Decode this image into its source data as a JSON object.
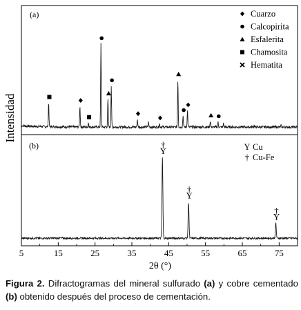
{
  "chart_data": {
    "type": "line",
    "xlabel": "2θ (°)",
    "ylabel": "Intensidad",
    "xlim": [
      5,
      80
    ],
    "x_ticks": [
      "5",
      "15",
      "25",
      "35",
      "45",
      "55",
      "65",
      "75"
    ],
    "panels": [
      {
        "label": "(a)",
        "legend": [
          {
            "symbol": "diamond",
            "name": "Cuarzo"
          },
          {
            "symbol": "circle",
            "name": "Calcopirita"
          },
          {
            "symbol": "triangle",
            "name": "Esfalerita"
          },
          {
            "symbol": "square",
            "name": "Chamosita"
          },
          {
            "symbol": "cross",
            "name": "Hematita"
          }
        ],
        "peaks": [
          {
            "x": 12.4,
            "height": 0.28,
            "marker": "square"
          },
          {
            "x": 20.9,
            "height": 0.24,
            "marker": "diamond"
          },
          {
            "x": 23.2,
            "height": 0.05,
            "marker": "square"
          },
          {
            "x": 26.6,
            "height": 0.95,
            "marker": "circle"
          },
          {
            "x": 28.5,
            "height": 0.32,
            "marker": "triangle"
          },
          {
            "x": 29.4,
            "height": 0.47,
            "marker": "circle"
          },
          {
            "x": 36.5,
            "height": 0.09,
            "marker": "diamond"
          },
          {
            "x": 39.5,
            "height": 0.06,
            "marker": null
          },
          {
            "x": 42.5,
            "height": 0.04,
            "marker": "diamond"
          },
          {
            "x": 47.5,
            "height": 0.54,
            "marker": "triangle"
          },
          {
            "x": 48.9,
            "height": 0.13,
            "marker": "circle"
          },
          {
            "x": 50.1,
            "height": 0.19,
            "marker": "diamond"
          },
          {
            "x": 56.3,
            "height": 0.07,
            "marker": "triangle"
          },
          {
            "x": 58.4,
            "height": 0.06,
            "marker": "circle"
          },
          {
            "x": 59.9,
            "height": 0.04,
            "marker": null
          },
          {
            "x": 68.2,
            "height": 0.02,
            "marker": null
          },
          {
            "x": 75.5,
            "height": 0.02,
            "marker": null
          }
        ]
      },
      {
        "label": "(b)",
        "legend": [
          {
            "symbol": "Y",
            "name": "Cu"
          },
          {
            "symbol": "†",
            "name": "Cu-Fe"
          }
        ],
        "peaks": [
          {
            "x": 43.3,
            "height": 0.95,
            "markers": [
              "Y",
              "†"
            ]
          },
          {
            "x": 50.4,
            "height": 0.43,
            "markers": [
              "Y",
              "†"
            ]
          },
          {
            "x": 74.1,
            "height": 0.18,
            "markers": [
              "Y",
              "†"
            ]
          }
        ]
      }
    ]
  },
  "caption": {
    "label": "Figura 2.",
    "parts": [
      {
        "text": " Difractogramas del mineral sulfurado ",
        "bold": false
      },
      {
        "text": "(a)",
        "bold": true
      },
      {
        "text": " y cobre cementado ",
        "bold": false
      },
      {
        "text": "(b)",
        "bold": true
      },
      {
        "text": " obtenido después del proceso de cementación.",
        "bold": false
      }
    ]
  }
}
